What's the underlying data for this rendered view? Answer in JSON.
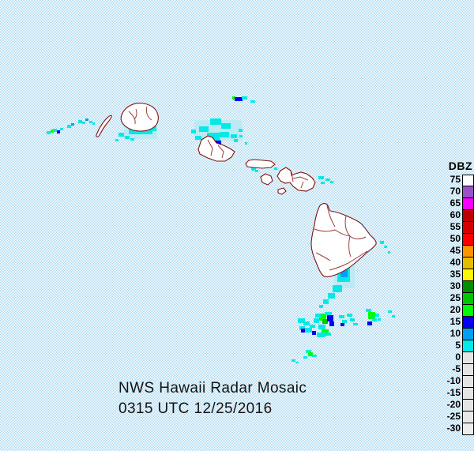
{
  "title": {
    "line1": "NWS Hawaii Radar Mosaic",
    "line2": "0315 UTC 12/25/2016"
  },
  "legend": {
    "title": "DBZ",
    "entries": [
      {
        "label": "75",
        "color": "#FDFDFD"
      },
      {
        "label": "70",
        "color": "#9854C6"
      },
      {
        "label": "65",
        "color": "#F800FD"
      },
      {
        "label": "60",
        "color": "#BC0000"
      },
      {
        "label": "55",
        "color": "#D40000"
      },
      {
        "label": "50",
        "color": "#FD0000"
      },
      {
        "label": "45",
        "color": "#FD9500"
      },
      {
        "label": "40",
        "color": "#E5BC00"
      },
      {
        "label": "35",
        "color": "#FDF802"
      },
      {
        "label": "30",
        "color": "#008E00"
      },
      {
        "label": "25",
        "color": "#01C501"
      },
      {
        "label": "20",
        "color": "#02FD02"
      },
      {
        "label": "15",
        "color": "#0300F4"
      },
      {
        "label": "10",
        "color": "#019FF4"
      },
      {
        "label": "5",
        "color": "#04E9E7"
      },
      {
        "label": "0",
        "color": "#E4E4E4"
      },
      {
        "label": "-5",
        "color": "#E4E4E4"
      },
      {
        "label": "-10",
        "color": "#E4E4E4"
      },
      {
        "label": "-15",
        "color": "#E4E4E4"
      },
      {
        "label": "-20",
        "color": "#E4E4E4"
      },
      {
        "label": "-25",
        "color": "#E8E8E8"
      },
      {
        "label": "-30",
        "color": "#ECECEC"
      }
    ]
  },
  "map_colors": {
    "ocean_dither_blue": "#ABD9F1",
    "ocean_dither_white": "#FFFFFF",
    "island_fill": "#FFFFFF",
    "island_outline": "#7E1212"
  },
  "radar_echoes": {
    "palette": {
      "c1": "#04E9E7",
      "c2": "#019FF4",
      "b": "#0300F4",
      "g": "#02FD02",
      "g2": "#01C501",
      "r": "#FD0000",
      "pale": "#A8E8F0"
    },
    "points": [
      [
        59,
        166,
        5,
        4,
        "c1"
      ],
      [
        64,
        164,
        4,
        4,
        "g"
      ],
      [
        67,
        163,
        5,
        4,
        "c1"
      ],
      [
        72,
        165,
        4,
        4,
        "b"
      ],
      [
        76,
        162,
        4,
        3,
        "c1"
      ],
      [
        85,
        158,
        5,
        4,
        "c1"
      ],
      [
        90,
        156,
        4,
        3,
        "c2"
      ],
      [
        99,
        152,
        5,
        4,
        "c1"
      ],
      [
        104,
        154,
        4,
        3,
        "c1"
      ],
      [
        108,
        150,
        4,
        3,
        "c2"
      ],
      [
        113,
        153,
        4,
        3,
        "c1"
      ],
      [
        117,
        155,
        3,
        3,
        "c1"
      ],
      [
        157,
        150,
        42,
        26,
        "pale"
      ],
      [
        163,
        154,
        30,
        16,
        "c1"
      ],
      [
        173,
        156,
        12,
        10,
        "c2"
      ],
      [
        176,
        158,
        7,
        7,
        "b"
      ],
      [
        190,
        160,
        8,
        6,
        "c1"
      ],
      [
        150,
        168,
        7,
        5,
        "c1"
      ],
      [
        158,
        172,
        6,
        4,
        "c1"
      ],
      [
        165,
        175,
        5,
        3,
        "c1"
      ],
      [
        146,
        176,
        4,
        3,
        "c1"
      ],
      [
        294,
        122,
        4,
        4,
        "g"
      ],
      [
        297,
        123,
        10,
        5,
        "b"
      ],
      [
        306,
        122,
        7,
        4,
        "c1"
      ],
      [
        317,
        127,
        6,
        3,
        "c1"
      ],
      [
        246,
        152,
        60,
        26,
        "pale"
      ],
      [
        252,
        160,
        12,
        7,
        "c1"
      ],
      [
        266,
        150,
        14,
        8,
        "c1"
      ],
      [
        280,
        156,
        12,
        7,
        "c1"
      ],
      [
        262,
        168,
        16,
        8,
        "c1"
      ],
      [
        278,
        167,
        12,
        7,
        "c1"
      ],
      [
        292,
        170,
        8,
        5,
        "c1"
      ],
      [
        242,
        164,
        6,
        5,
        "c1"
      ],
      [
        247,
        172,
        8,
        5,
        "c1"
      ],
      [
        302,
        163,
        5,
        4,
        "c1"
      ],
      [
        261,
        176,
        18,
        10,
        "c1"
      ],
      [
        271,
        178,
        9,
        8,
        "b"
      ],
      [
        265,
        187,
        11,
        7,
        "c2"
      ],
      [
        278,
        187,
        9,
        6,
        "c1"
      ],
      [
        257,
        182,
        4,
        4,
        "g"
      ],
      [
        286,
        191,
        7,
        5,
        "c1"
      ],
      [
        280,
        196,
        6,
        4,
        "r"
      ],
      [
        296,
        176,
        5,
        4,
        "c1"
      ],
      [
        303,
        171,
        4,
        3,
        "c1"
      ],
      [
        310,
        180,
        3,
        3,
        "c1"
      ],
      [
        327,
        203,
        9,
        7,
        "c1"
      ],
      [
        331,
        205,
        4,
        4,
        "b"
      ],
      [
        318,
        212,
        6,
        4,
        "c1"
      ],
      [
        323,
        215,
        4,
        3,
        "c1"
      ],
      [
        333,
        224,
        7,
        5,
        "c1"
      ],
      [
        336,
        227,
        5,
        3,
        "c2"
      ],
      [
        347,
        212,
        4,
        3,
        "c1"
      ],
      [
        356,
        217,
        8,
        7,
        "c1"
      ],
      [
        358,
        219,
        3,
        3,
        "g"
      ],
      [
        366,
        225,
        5,
        4,
        "c1"
      ],
      [
        384,
        222,
        9,
        7,
        "c1"
      ],
      [
        389,
        229,
        8,
        6,
        "c1"
      ],
      [
        382,
        231,
        6,
        5,
        "c2"
      ],
      [
        393,
        226,
        4,
        4,
        "b"
      ],
      [
        377,
        237,
        6,
        4,
        "c1"
      ],
      [
        403,
        223,
        7,
        4,
        "c1"
      ],
      [
        412,
        226,
        6,
        3,
        "c1"
      ],
      [
        406,
        230,
        5,
        3,
        "c1"
      ],
      [
        418,
        229,
        4,
        3,
        "c1"
      ],
      [
        408,
        271,
        6,
        5,
        "c1"
      ],
      [
        414,
        275,
        5,
        4,
        "c1"
      ],
      [
        417,
        269,
        4,
        3,
        "c1"
      ],
      [
        399,
        291,
        28,
        38,
        "pale"
      ],
      [
        403,
        295,
        16,
        22,
        "c1"
      ],
      [
        403,
        301,
        6,
        7,
        "g"
      ],
      [
        409,
        299,
        9,
        15,
        "b"
      ],
      [
        411,
        313,
        9,
        11,
        "c2"
      ],
      [
        407,
        318,
        11,
        9,
        "c1"
      ],
      [
        436,
        326,
        5,
        5,
        "c1"
      ],
      [
        461,
        303,
        9,
        7,
        "c1"
      ],
      [
        465,
        309,
        7,
        6,
        "c2"
      ],
      [
        469,
        305,
        5,
        5,
        "b"
      ],
      [
        481,
        305,
        5,
        4,
        "c1"
      ],
      [
        486,
        311,
        4,
        3,
        "c1"
      ],
      [
        491,
        318,
        3,
        3,
        "c1"
      ],
      [
        423,
        329,
        26,
        36,
        "pale"
      ],
      [
        427,
        333,
        16,
        24,
        "c1"
      ],
      [
        431,
        339,
        9,
        12,
        "c2"
      ],
      [
        421,
        361,
        12,
        9,
        "c1"
      ],
      [
        415,
        371,
        9,
        7,
        "c1"
      ],
      [
        409,
        379,
        7,
        6,
        "c1"
      ],
      [
        404,
        386,
        5,
        4,
        "c1"
      ],
      [
        377,
        403,
        9,
        6,
        "c1"
      ],
      [
        384,
        407,
        8,
        5,
        "c1"
      ],
      [
        379,
        413,
        7,
        5,
        "c1"
      ],
      [
        386,
        415,
        9,
        6,
        "c1"
      ],
      [
        381,
        416,
        5,
        5,
        "b"
      ],
      [
        392,
        411,
        7,
        4,
        "c1"
      ],
      [
        404,
        397,
        9,
        9,
        "g"
      ],
      [
        408,
        404,
        7,
        6,
        "g2"
      ],
      [
        414,
        399,
        8,
        8,
        "b"
      ],
      [
        417,
        407,
        6,
        6,
        "b"
      ],
      [
        399,
        397,
        7,
        5,
        "c1"
      ],
      [
        411,
        395,
        9,
        4,
        "c1"
      ],
      [
        397,
        403,
        7,
        6,
        "c1"
      ],
      [
        403,
        411,
        9,
        6,
        "c1"
      ],
      [
        407,
        417,
        9,
        8,
        "g"
      ],
      [
        401,
        421,
        11,
        6,
        "c1"
      ],
      [
        395,
        419,
        5,
        5,
        "b"
      ],
      [
        413,
        421,
        6,
        4,
        "c1"
      ],
      [
        429,
        399,
        7,
        4,
        "c1"
      ],
      [
        433,
        405,
        6,
        4,
        "c1"
      ],
      [
        431,
        409,
        5,
        4,
        "b"
      ],
      [
        439,
        397,
        7,
        4,
        "c1"
      ],
      [
        443,
        403,
        6,
        4,
        "c1"
      ],
      [
        447,
        409,
        6,
        3,
        "c1"
      ],
      [
        463,
        391,
        7,
        4,
        "c1"
      ],
      [
        466,
        395,
        9,
        9,
        "g"
      ],
      [
        471,
        403,
        6,
        4,
        "c1"
      ],
      [
        465,
        407,
        6,
        5,
        "b"
      ],
      [
        475,
        397,
        5,
        4,
        "c1"
      ],
      [
        478,
        403,
        4,
        3,
        "c1"
      ],
      [
        491,
        393,
        5,
        3,
        "c1"
      ],
      [
        496,
        399,
        4,
        3,
        "c1"
      ],
      [
        387,
        443,
        7,
        4,
        "c1"
      ],
      [
        390,
        446,
        6,
        5,
        "g"
      ],
      [
        395,
        449,
        6,
        3,
        "c1"
      ],
      [
        384,
        451,
        5,
        3,
        "c1"
      ],
      [
        369,
        455,
        5,
        3,
        "c1"
      ],
      [
        374,
        458,
        4,
        2,
        "c1"
      ]
    ]
  }
}
